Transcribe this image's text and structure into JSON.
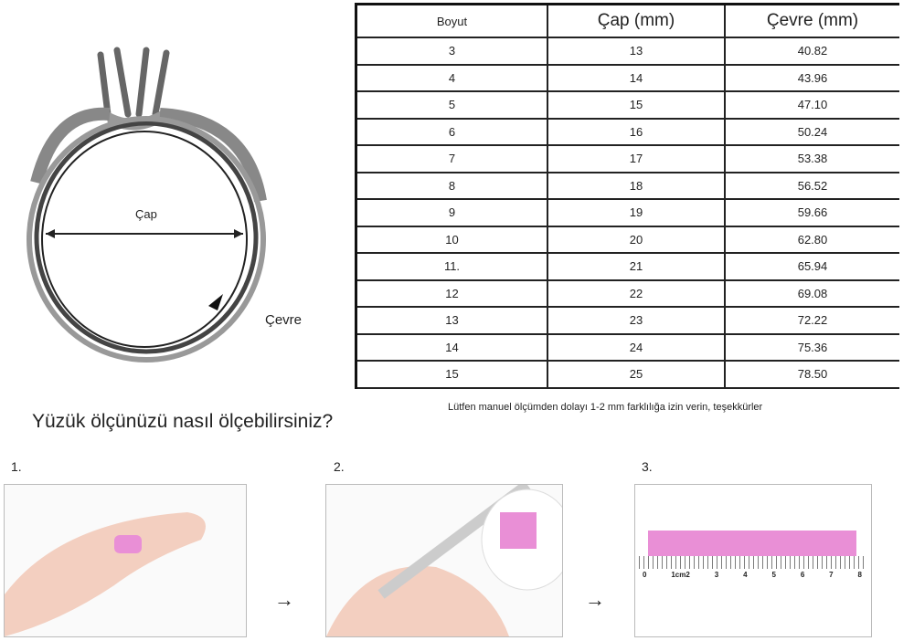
{
  "diagram": {
    "diameter_label": "Çap",
    "circumference_label": "Çevre"
  },
  "table": {
    "headers": [
      "Boyut",
      "Çap (mm)",
      "Çevre (mm)"
    ],
    "rows": [
      [
        "3",
        "13",
        "40.82"
      ],
      [
        "4",
        "14",
        "43.96"
      ],
      [
        "5",
        "15",
        "47.10"
      ],
      [
        "6",
        "16",
        "50.24"
      ],
      [
        "7",
        "17",
        "53.38"
      ],
      [
        "8",
        "18",
        "56.52"
      ],
      [
        "9",
        "19",
        "59.66"
      ],
      [
        "10",
        "20",
        "62.80"
      ],
      [
        "11.",
        "21",
        "65.94"
      ],
      [
        "12",
        "22",
        "69.08"
      ],
      [
        "13",
        "23",
        "72.22"
      ],
      [
        "14",
        "24",
        "75.36"
      ],
      [
        "15",
        "25",
        "78.50"
      ]
    ]
  },
  "note": "Lütfen manuel ölçümden dolayı 1-2 mm farklılığa izin verin, teşekkürler",
  "howto_title": "Yüzük ölçünüzü nasıl ölçebilirsiniz?",
  "steps": [
    "1.",
    "2.",
    "3."
  ],
  "ruler": {
    "numbers": [
      "0",
      "1cm2",
      "3",
      "4",
      "5",
      "6",
      "7",
      "8"
    ]
  },
  "colors": {
    "tape": "#e98fd6"
  }
}
